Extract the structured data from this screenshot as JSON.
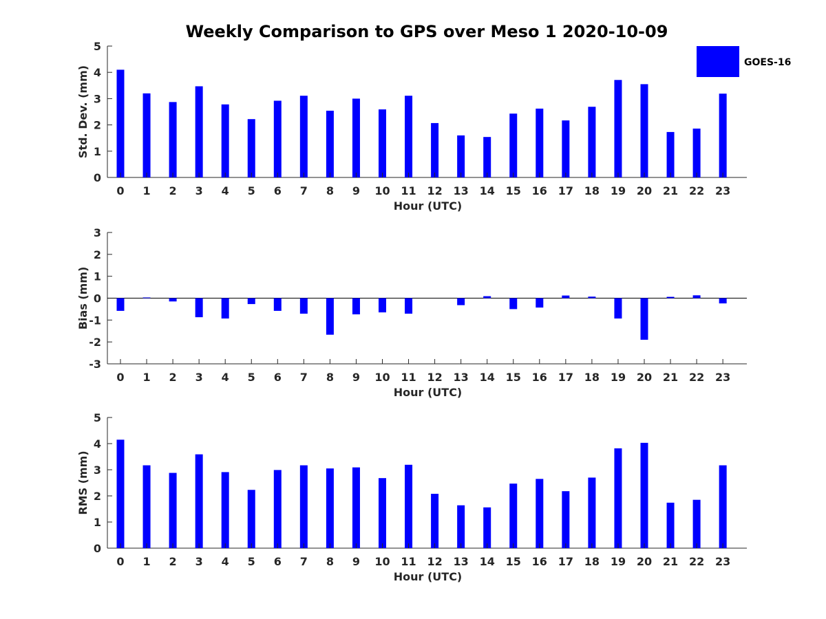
{
  "chart_data": {
    "type": "bar",
    "title": "Weekly Comparison to GPS over Meso 1 2020-10-09",
    "legend": {
      "entries": [
        "GOES-16"
      ],
      "placement": "top-right"
    },
    "color": "#0000ff",
    "categories": [
      "0",
      "1",
      "2",
      "3",
      "4",
      "5",
      "6",
      "7",
      "8",
      "9",
      "10",
      "11",
      "12",
      "13",
      "14",
      "15",
      "16",
      "17",
      "18",
      "19",
      "20",
      "21",
      "22",
      "23"
    ],
    "panels": [
      {
        "id": "std",
        "xlabel": "Hour (UTC)",
        "ylabel": "Std. Dev. (mm)",
        "ylim": [
          0,
          5
        ],
        "yticks": [
          "0",
          "1",
          "2",
          "3",
          "4",
          "5"
        ],
        "zero_line": false,
        "values": [
          4.1,
          3.2,
          2.87,
          3.47,
          2.78,
          2.22,
          2.92,
          3.11,
          2.54,
          3.0,
          2.59,
          3.11,
          2.07,
          1.6,
          1.54,
          2.43,
          2.62,
          2.17,
          2.69,
          3.71,
          3.55,
          1.73,
          1.86,
          3.19
        ]
      },
      {
        "id": "bias",
        "xlabel": "Hour (UTC)",
        "ylabel": "Bias (mm)",
        "ylim": [
          -3,
          3
        ],
        "yticks": [
          "-3",
          "-2",
          "-1",
          "0",
          "1",
          "2",
          "3"
        ],
        "zero_line": true,
        "values": [
          -0.58,
          0.03,
          -0.15,
          -0.87,
          -0.93,
          -0.27,
          -0.58,
          -0.71,
          -1.67,
          -0.74,
          -0.65,
          -0.71,
          0.0,
          -0.32,
          0.09,
          -0.5,
          -0.43,
          0.12,
          0.07,
          -0.93,
          -1.9,
          0.06,
          0.13,
          -0.24
        ]
      },
      {
        "id": "rms",
        "xlabel": "Hour (UTC)",
        "ylabel": "RMS (mm)",
        "ylim": [
          0,
          5
        ],
        "yticks": [
          "0",
          "1",
          "2",
          "3",
          "4",
          "5"
        ],
        "zero_line": false,
        "values": [
          4.15,
          3.17,
          2.88,
          3.59,
          2.91,
          2.23,
          2.99,
          3.17,
          3.05,
          3.09,
          2.68,
          3.19,
          2.08,
          1.64,
          1.56,
          2.47,
          2.65,
          2.18,
          2.7,
          3.82,
          4.03,
          1.74,
          1.85,
          3.17
        ]
      }
    ]
  }
}
